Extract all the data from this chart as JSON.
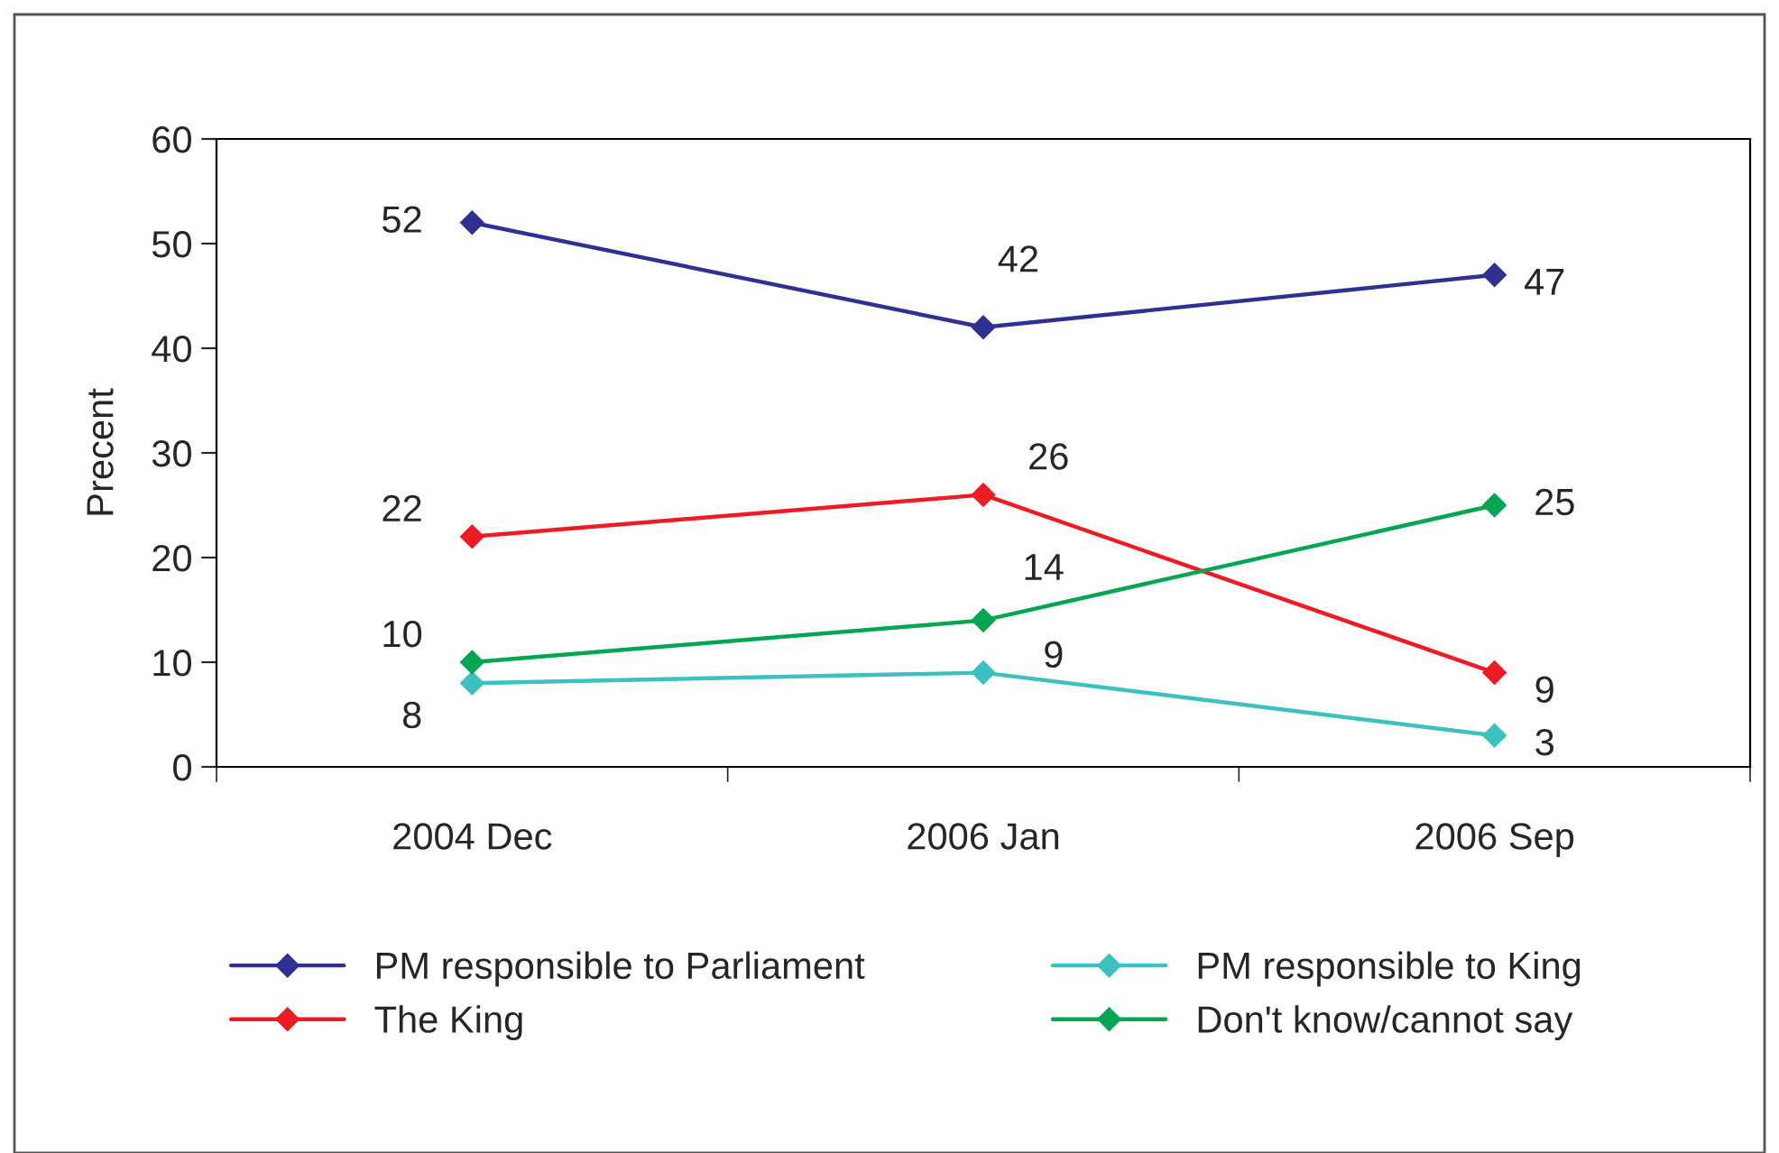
{
  "chart_data": {
    "type": "line",
    "ylabel": "Precent",
    "categories": [
      "2004 Dec",
      "2006 Jan",
      "2006 Sep"
    ],
    "series": [
      {
        "name": "PM responsible to Parliament",
        "color": "#2e3192",
        "values": [
          52,
          42,
          47
        ]
      },
      {
        "name": "The King",
        "color": "#ed1c24",
        "values": [
          22,
          26,
          9
        ]
      },
      {
        "name": "PM responsible to King",
        "color": "#3cc0c0",
        "values": [
          8,
          9,
          3
        ]
      },
      {
        "name": "Don't know/cannot say",
        "color": "#00a651",
        "values": [
          10,
          14,
          25
        ]
      }
    ],
    "ylim": [
      0,
      60
    ],
    "yticks": [
      0,
      10,
      20,
      30,
      40,
      50,
      60
    ],
    "grid": false,
    "legend": "bottom",
    "marker": "diamond",
    "line_style": "solid",
    "data_labels": true
  }
}
